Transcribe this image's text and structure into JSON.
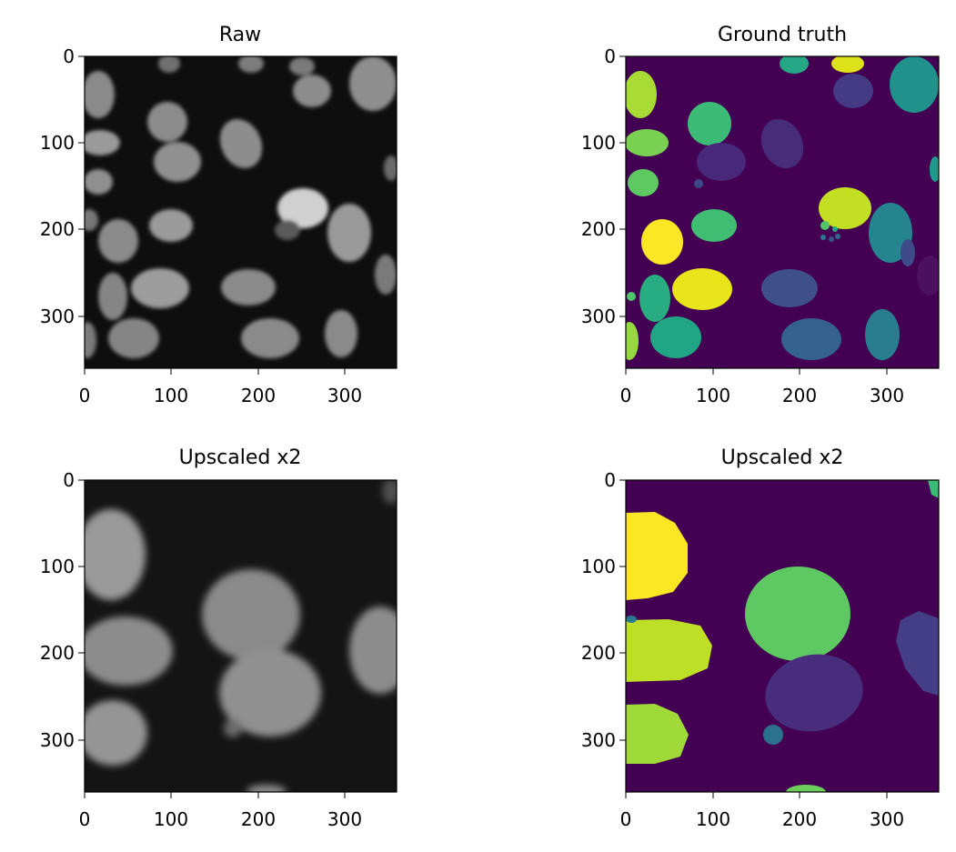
{
  "figure": {
    "background": "#ffffff"
  },
  "chart_data": [
    {
      "type": "heatmap",
      "title": "Raw",
      "colormap": "gray",
      "xlim": [
        0,
        360
      ],
      "ylim": [
        360,
        0
      ],
      "xticks": [
        0,
        100,
        200,
        300
      ],
      "yticks": [
        0,
        100,
        200,
        300
      ],
      "xtick_labels": [
        "0",
        "100",
        "200",
        "300"
      ],
      "ytick_labels": [
        "0",
        "100",
        "200",
        "300"
      ]
    },
    {
      "type": "heatmap",
      "title": "Ground truth",
      "colormap": "viridis",
      "xlim": [
        0,
        360
      ],
      "ylim": [
        360,
        0
      ],
      "xticks": [
        0,
        100,
        200,
        300
      ],
      "yticks": [
        0,
        100,
        200,
        300
      ],
      "xtick_labels": [
        "0",
        "100",
        "200",
        "300"
      ],
      "ytick_labels": [
        "0",
        "100",
        "200",
        "300"
      ]
    },
    {
      "type": "heatmap",
      "title": "Upscaled x2",
      "colormap": "gray",
      "xlim": [
        0,
        360
      ],
      "ylim": [
        360,
        0
      ],
      "xticks": [
        0,
        100,
        200,
        300
      ],
      "yticks": [
        0,
        100,
        200,
        300
      ],
      "xtick_labels": [
        "0",
        "100",
        "200",
        "300"
      ],
      "ytick_labels": [
        "0",
        "100",
        "200",
        "300"
      ]
    },
    {
      "type": "heatmap",
      "title": "Upscaled x2",
      "colormap": "viridis",
      "xlim": [
        0,
        360
      ],
      "ylim": [
        360,
        0
      ],
      "xticks": [
        0,
        100,
        200,
        300
      ],
      "yticks": [
        0,
        100,
        200,
        300
      ],
      "xtick_labels": [
        "0",
        "100",
        "200",
        "300"
      ],
      "ytick_labels": [
        "0",
        "100",
        "200",
        "300"
      ]
    }
  ]
}
